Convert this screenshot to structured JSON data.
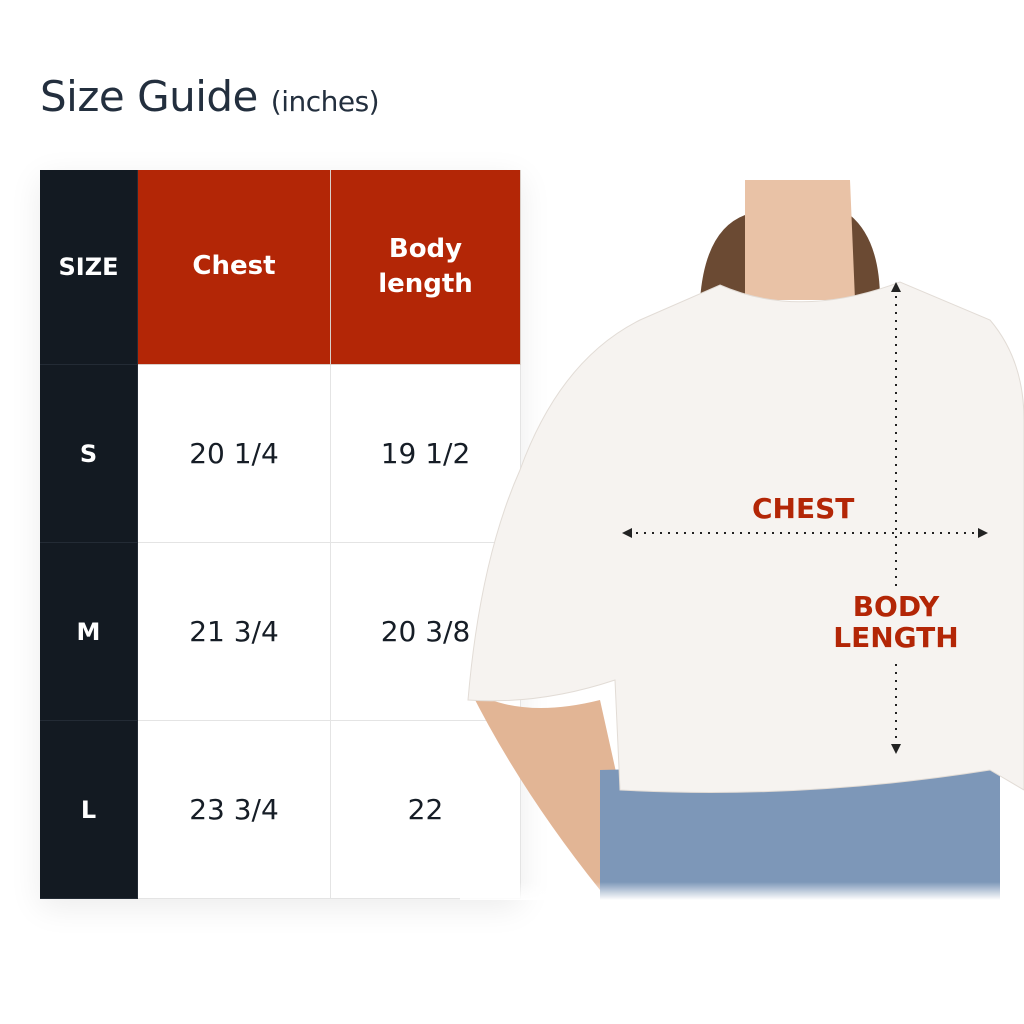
{
  "title": {
    "main": "Size Guide",
    "unit": "(inches)"
  },
  "table": {
    "headers": [
      "SIZE",
      "Chest",
      "Body length"
    ],
    "rows": [
      {
        "size": "S",
        "chest": "20 1/4",
        "body_length": "19 1/2"
      },
      {
        "size": "M",
        "chest": "21 3/4",
        "body_length": "20 3/8"
      },
      {
        "size": "L",
        "chest": "23 3/4",
        "body_length": "22"
      }
    ]
  },
  "diagram": {
    "chest_label": "CHEST",
    "body_length_label_1": "BODY",
    "body_length_label_2": "LENGTH"
  },
  "colors": {
    "accent": "#b32606",
    "dark": "#131a22",
    "text": "#232f3e"
  }
}
